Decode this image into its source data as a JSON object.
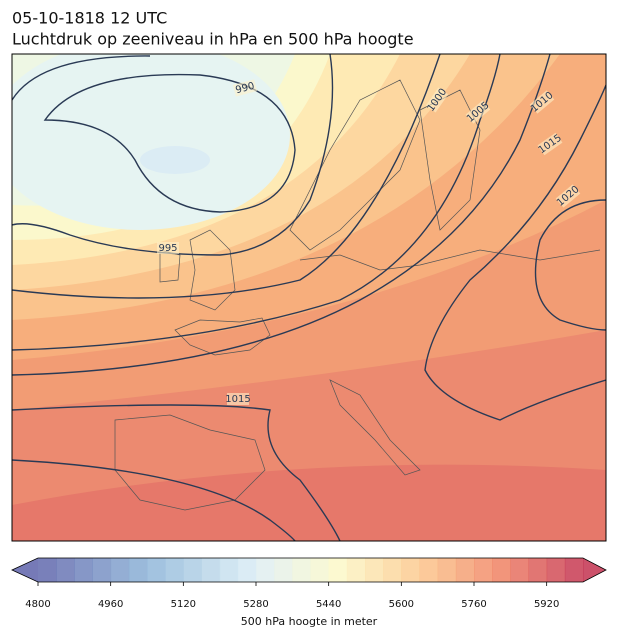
{
  "title": "05-10-1818 12 UTC",
  "subtitle": "Luchtdruk op zeeniveau in hPa en 500 hPa hoogte",
  "isobar_labels": [
    "990",
    "995",
    "1000",
    "1005",
    "1010",
    "1015",
    "1020",
    "1015"
  ],
  "colorbar": {
    "lim": [
      4800,
      6000
    ],
    "ticks": [
      4800,
      4960,
      5120,
      5280,
      5440,
      5600,
      5760,
      5920
    ],
    "label": "500 hPa hoogte in meter"
  }
}
